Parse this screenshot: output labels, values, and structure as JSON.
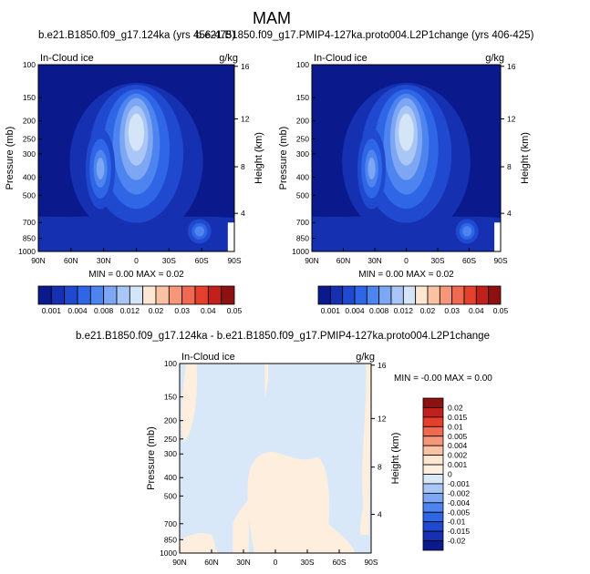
{
  "main_title": "MAM",
  "chart_data": [
    {
      "type": "heatmap",
      "title": "b.e21.B1850.f09_g17.124ka (yrs 456-475)",
      "corner_left": "In-Cloud ice",
      "corner_right": "g/kg",
      "xlabel": "",
      "ylabel": "Pressure (mb)",
      "ylabel_right": "Height (km)",
      "x_ticks": [
        "90N",
        "60N",
        "30N",
        "0",
        "30S",
        "60S",
        "90S"
      ],
      "y_ticks": [
        "100",
        "150",
        "200",
        "250",
        "300",
        "400",
        "500",
        "700",
        "850",
        "1000"
      ],
      "y_ticks_right": [
        "16",
        "12",
        "8",
        "4"
      ],
      "xlim": [
        90,
        -90
      ],
      "ylim": [
        1000,
        100
      ],
      "stats": "MIN =   0.00  MAX =   0.02",
      "min": 0.0,
      "max": 0.02,
      "peak_value": 0.018,
      "peak_location": {
        "lat": 0,
        "pressure_mb": 250
      }
    },
    {
      "type": "heatmap",
      "title": "b.e21.B1850.f09_g17.PMIP4-127ka.proto004.L2P1change (yrs 406-425)",
      "corner_left": "In-Cloud ice",
      "corner_right": "g/kg",
      "xlabel": "",
      "ylabel": "Pressure (mb)",
      "ylabel_right": "Height (km)",
      "x_ticks": [
        "90N",
        "60N",
        "30N",
        "0",
        "30S",
        "60S",
        "90S"
      ],
      "y_ticks": [
        "100",
        "150",
        "200",
        "250",
        "300",
        "400",
        "500",
        "700",
        "850",
        "1000"
      ],
      "y_ticks_right": [
        "16",
        "12",
        "8",
        "4"
      ],
      "xlim": [
        90,
        -90
      ],
      "ylim": [
        1000,
        100
      ],
      "stats": "MIN =   0.00  MAX =   0.02",
      "min": 0.0,
      "max": 0.02,
      "peak_value": 0.018,
      "peak_location": {
        "lat": 0,
        "pressure_mb": 250
      }
    },
    {
      "type": "heatmap",
      "title": "b.e21.B1850.f09_g17.124ka - b.e21.B1850.f09_g17.PMIP4-127ka.proto004.L2P1change",
      "corner_left": "In-Cloud ice",
      "corner_right": "g/kg",
      "xlabel": "",
      "ylabel": "Pressure (mb)",
      "ylabel_right": "Height (km)",
      "x_ticks": [
        "90N",
        "60N",
        "30N",
        "0",
        "30S",
        "60S",
        "90S"
      ],
      "y_ticks": [
        "100",
        "150",
        "200",
        "250",
        "300",
        "400",
        "500",
        "700",
        "850",
        "1000"
      ],
      "y_ticks_right": [
        "16",
        "12",
        "8",
        "4"
      ],
      "xlim": [
        90,
        -90
      ],
      "ylim": [
        1000,
        100
      ],
      "stats": "MIN =  -0.00  MAX =   0.00",
      "min": -0.0,
      "max": 0.0,
      "background_bin": "-0.001 to 0",
      "positive_bin": "0 to 0.001"
    }
  ],
  "colorbar_horizontal": {
    "labels": [
      "0.001",
      "0.004",
      "0.008",
      "0.012",
      "0.02",
      "0.03",
      "0.04",
      "0.05"
    ],
    "colors": [
      "#0a1a8c",
      "#1530b0",
      "#1f4ad0",
      "#2f66e6",
      "#4d84ef",
      "#7ea7f3",
      "#aac6f6",
      "#d5e5f8",
      "#fde6d2",
      "#f9c3a3",
      "#f6977a",
      "#ef6a50",
      "#e4402d",
      "#c2201a",
      "#8e1111"
    ]
  },
  "colorbar_vertical": {
    "labels": [
      "0.02",
      "0.015",
      "0.01",
      "0.005",
      "0.004",
      "0.002",
      "0.001",
      "0",
      "-0.001",
      "-0.002",
      "-0.004",
      "-0.005",
      "-0.01",
      "-0.015",
      "-0.02"
    ],
    "colors": [
      "#8e1111",
      "#c2201a",
      "#e4402d",
      "#ef6a50",
      "#f6977a",
      "#f9c3a3",
      "#fde6d2",
      "#fdeede",
      "#d8e8f8",
      "#aac6f6",
      "#7ea7f3",
      "#4d84ef",
      "#2f66e6",
      "#1f4ad0",
      "#1530b0",
      "#0a1a8c"
    ]
  }
}
